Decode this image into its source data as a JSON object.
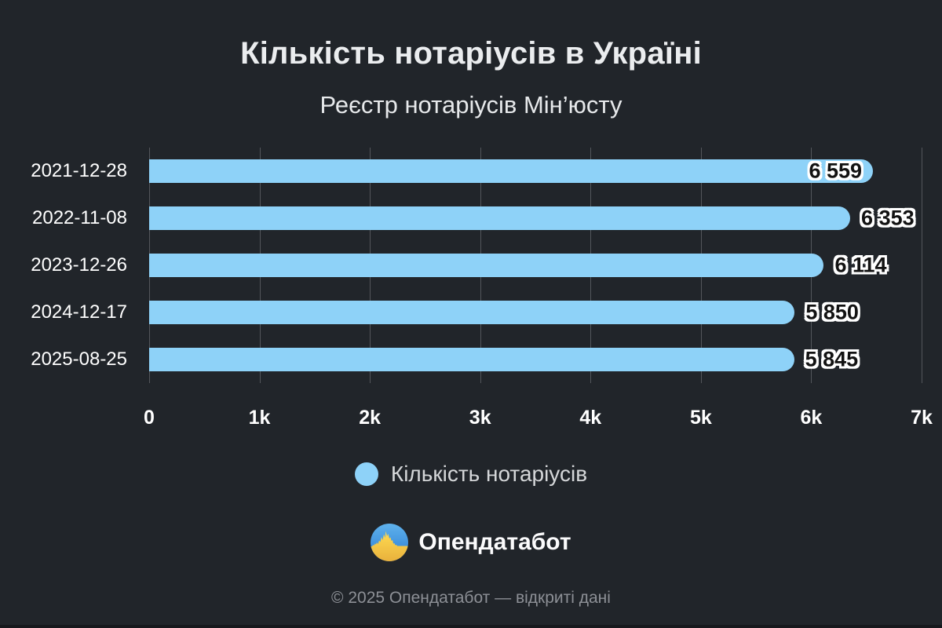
{
  "chart_data": {
    "type": "bar",
    "orientation": "horizontal",
    "title": "Кількість нотаріусів в Україні",
    "subtitle": "Реєстр нотаріусів Мін’юсту",
    "categories": [
      "2021-12-28",
      "2022-11-08",
      "2023-12-26",
      "2024-12-17",
      "2025-08-25"
    ],
    "values": [
      6559,
      6353,
      6114,
      5850,
      5845
    ],
    "value_labels": [
      "6 559",
      "6 353",
      "6 114",
      "5 850",
      "5 845"
    ],
    "series_name": "Кількість нотаріусів",
    "xlim": [
      0,
      7000
    ],
    "xticks": [
      {
        "value": 0,
        "label": "0"
      },
      {
        "value": 1000,
        "label": "1k"
      },
      {
        "value": 2000,
        "label": "2k"
      },
      {
        "value": 3000,
        "label": "3k"
      },
      {
        "value": 4000,
        "label": "4k"
      },
      {
        "value": 5000,
        "label": "5k"
      },
      {
        "value": 6000,
        "label": "6k"
      },
      {
        "value": 7000,
        "label": "7k"
      }
    ],
    "grid": true,
    "legend_position": "bottom",
    "bar_color": "#8ed2f8",
    "gridline_color": "#53565b",
    "background_color": "#21252a"
  },
  "legend": {
    "label": "Кількість нотаріусів",
    "swatch_color": "#8ed2f8"
  },
  "brand": {
    "name": "Опендатабот",
    "logo_blue": "#3f93de",
    "logo_yellow": "#ffd84a"
  },
  "footer": {
    "copyright": "© 2025 Опендатабот — відкриті дані"
  }
}
